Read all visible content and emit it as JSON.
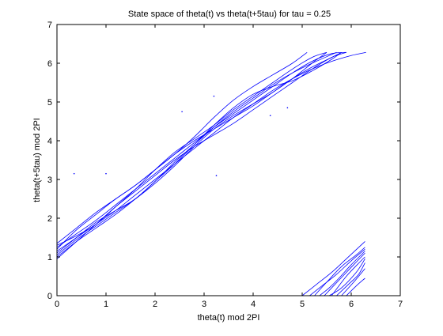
{
  "chart_data": {
    "type": "line",
    "title": "State space of theta(t) vs theta(t+5tau) for tau = 0.25",
    "xlabel": "theta(t) mod 2PI",
    "ylabel": "theta(t+5tau) mod 2PI",
    "xlim": [
      0,
      7
    ],
    "ylim": [
      0,
      7
    ],
    "xticks": [
      0,
      1,
      2,
      3,
      4,
      5,
      6,
      7
    ],
    "yticks": [
      0,
      1,
      2,
      3,
      4,
      5,
      6,
      7
    ],
    "grid": false,
    "line_color": "#0000ff",
    "series": [
      {
        "x": [
          0,
          0.4,
          0.8,
          1.2,
          1.6,
          2.0,
          2.4,
          2.8,
          3.2,
          3.6,
          4.0,
          4.4,
          4.8,
          5.2,
          5.6,
          5.9
        ],
        "y": [
          1.25,
          1.6,
          1.95,
          2.35,
          2.75,
          3.15,
          3.55,
          3.95,
          4.35,
          4.7,
          5.05,
          5.4,
          5.75,
          6.05,
          6.25,
          6.28
        ]
      },
      {
        "x": [
          0,
          0.4,
          0.8,
          1.2,
          1.6,
          2.0,
          2.4,
          2.8,
          3.2,
          3.6,
          4.0,
          4.4,
          4.8,
          5.2,
          5.6,
          5.8
        ],
        "y": [
          1.1,
          1.5,
          1.9,
          2.2,
          2.5,
          2.95,
          3.4,
          3.9,
          4.4,
          4.85,
          5.2,
          5.4,
          5.55,
          5.8,
          6.1,
          6.28
        ]
      },
      {
        "x": [
          0,
          0.4,
          0.8,
          1.2,
          1.6,
          2.0,
          2.4,
          2.8,
          3.2,
          3.6,
          4.0,
          4.4,
          4.8,
          5.2,
          5.5
        ],
        "y": [
          1.3,
          1.55,
          1.85,
          2.3,
          2.75,
          3.25,
          3.7,
          4.05,
          4.4,
          4.8,
          5.15,
          5.5,
          5.85,
          6.15,
          6.28
        ]
      },
      {
        "x": [
          0,
          0.4,
          0.8,
          1.2,
          1.6,
          2.0,
          2.4,
          2.8,
          3.2,
          3.6,
          4.0,
          4.4,
          4.8,
          5.2,
          5.6,
          5.9
        ],
        "y": [
          0.95,
          1.4,
          1.85,
          2.3,
          2.7,
          3.1,
          3.5,
          3.85,
          4.15,
          4.45,
          4.8,
          5.15,
          5.5,
          5.85,
          6.15,
          6.28
        ]
      },
      {
        "x": [
          0,
          0.4,
          0.8,
          1.2,
          1.6,
          2.0,
          2.4,
          2.8,
          3.2,
          3.6,
          4.0,
          4.4,
          4.8,
          5.1
        ],
        "y": [
          1.2,
          1.7,
          2.1,
          2.5,
          2.85,
          3.25,
          3.65,
          4.1,
          4.6,
          5.05,
          5.4,
          5.7,
          6.0,
          6.28
        ]
      },
      {
        "x": [
          0,
          0.4,
          0.8,
          1.2,
          1.6,
          2.0,
          2.4,
          2.8,
          3.2,
          3.6,
          4.0,
          4.4,
          4.8,
          5.2,
          5.6,
          6.0,
          6.3
        ],
        "y": [
          1.15,
          1.5,
          1.85,
          2.2,
          2.6,
          3.0,
          3.4,
          3.8,
          4.2,
          4.6,
          4.95,
          5.3,
          5.6,
          5.85,
          6.05,
          6.2,
          6.28
        ]
      },
      {
        "x": [
          0,
          0.4,
          0.8,
          1.2,
          1.6,
          2.0,
          2.4,
          2.8,
          3.2,
          3.6,
          4.0,
          4.4,
          4.8,
          5.2,
          5.5
        ],
        "y": [
          1.05,
          1.45,
          1.8,
          2.15,
          2.5,
          2.9,
          3.35,
          3.85,
          4.3,
          4.65,
          4.95,
          5.25,
          5.6,
          6.0,
          6.28
        ]
      },
      {
        "x": [
          0,
          0.4,
          0.8,
          1.2,
          1.6,
          2.0,
          2.4,
          2.8,
          3.2,
          3.6,
          4.0,
          4.4,
          4.8,
          5.2,
          5.6,
          5.8
        ],
        "y": [
          1.35,
          1.75,
          2.15,
          2.5,
          2.85,
          3.25,
          3.65,
          4.0,
          4.3,
          4.6,
          4.9,
          5.25,
          5.6,
          5.9,
          6.15,
          6.28
        ]
      },
      {
        "x": [
          0,
          0.4,
          0.8,
          1.2,
          1.6,
          2.0,
          2.4,
          2.8,
          3.2,
          3.6,
          4.0,
          4.4,
          4.8,
          5.2,
          5.7
        ],
        "y": [
          1.0,
          1.4,
          1.75,
          2.1,
          2.5,
          2.95,
          3.45,
          3.9,
          4.35,
          4.75,
          5.1,
          5.45,
          5.75,
          6.0,
          6.28
        ]
      },
      {
        "x": [
          5.0,
          5.3,
          5.6,
          5.9,
          6.28
        ],
        "y": [
          0.0,
          0.3,
          0.6,
          0.95,
          1.4
        ]
      },
      {
        "x": [
          5.15,
          5.4,
          5.7,
          6.0,
          6.28
        ],
        "y": [
          0.0,
          0.25,
          0.55,
          0.9,
          1.2
        ]
      },
      {
        "x": [
          5.25,
          5.5,
          5.8,
          6.1,
          6.28
        ],
        "y": [
          0.0,
          0.35,
          0.75,
          1.05,
          1.25
        ]
      },
      {
        "x": [
          5.35,
          5.55,
          5.75,
          6.0,
          6.28
        ],
        "y": [
          0.0,
          0.2,
          0.45,
          0.8,
          1.15
        ]
      },
      {
        "x": [
          5.45,
          5.75,
          6.05,
          6.28
        ],
        "y": [
          0.0,
          0.4,
          0.8,
          1.1
        ]
      },
      {
        "x": [
          5.55,
          5.8,
          6.1,
          6.28
        ],
        "y": [
          0.0,
          0.2,
          0.6,
          0.95
        ]
      },
      {
        "x": [
          5.6,
          5.9,
          6.2,
          6.28
        ],
        "y": [
          0.0,
          0.5,
          0.9,
          1.0
        ]
      },
      {
        "x": [
          5.7,
          5.95,
          6.15,
          6.28
        ],
        "y": [
          0.0,
          0.3,
          0.55,
          0.85
        ]
      },
      {
        "x": [
          5.8,
          6.05,
          6.28
        ],
        "y": [
          0.0,
          0.35,
          0.7
        ]
      },
      {
        "x": [
          5.9,
          6.1,
          6.28
        ],
        "y": [
          0.0,
          0.25,
          0.45
        ]
      }
    ],
    "points": [
      {
        "x": 0.35,
        "y": 3.15
      },
      {
        "x": 1.0,
        "y": 3.15
      },
      {
        "x": 2.55,
        "y": 4.75
      },
      {
        "x": 3.2,
        "y": 5.15
      },
      {
        "x": 3.25,
        "y": 3.1
      },
      {
        "x": 4.35,
        "y": 4.65
      },
      {
        "x": 4.7,
        "y": 4.85
      }
    ]
  }
}
